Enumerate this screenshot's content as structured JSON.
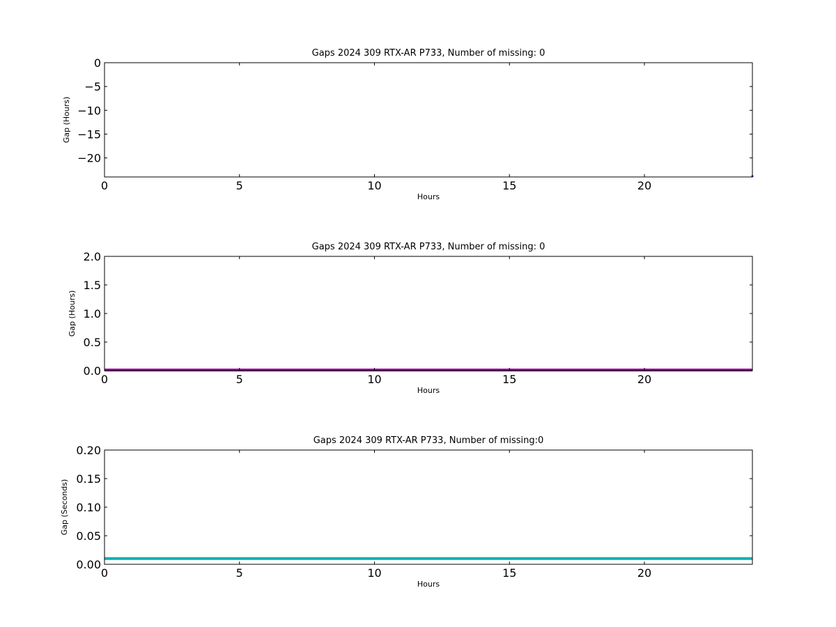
{
  "chart_data": [
    {
      "type": "line",
      "title": "Gaps 2024 309 RTX-AR  P733, Number of missing: 0",
      "xlabel": "Hours",
      "ylabel": "Gap (Hours)",
      "xlim": [
        0,
        24
      ],
      "ylim": [
        -24,
        0
      ],
      "xticks": [
        0,
        5,
        10,
        15,
        20
      ],
      "xtick_labels": [
        "0",
        "5",
        "10",
        "15",
        "20"
      ],
      "yticks": [
        0,
        -5,
        -10,
        -15,
        -20
      ],
      "ytick_labels": [
        "0",
        "−5",
        "−10",
        "−15",
        "−20"
      ],
      "grid": false,
      "series": [
        {
          "color": "#0000ff",
          "x": [
            24.0
          ],
          "y": [
            -24.0
          ]
        }
      ]
    },
    {
      "type": "line",
      "title": "Gaps 2024 309 RTX-AR  P733, Number of missing: 0",
      "xlabel": "Hours",
      "ylabel": "Gap (Hours)",
      "xlim": [
        0,
        24
      ],
      "ylim": [
        0,
        2
      ],
      "xticks": [
        0,
        5,
        10,
        15,
        20
      ],
      "xtick_labels": [
        "0",
        "5",
        "10",
        "15",
        "20"
      ],
      "yticks": [
        0,
        0.5,
        1,
        1.5,
        2
      ],
      "ytick_labels": [
        "0.0",
        "0.5",
        "1.0",
        "1.5",
        "2.0"
      ],
      "grid": false,
      "series": [
        {
          "color": "#990099",
          "x": [
            0,
            24
          ],
          "y": [
            0.01,
            0.01
          ]
        }
      ]
    },
    {
      "type": "line",
      "title": "Gaps 2024 309 RTX-AR  P733, Number of missing:0",
      "xlabel": "Hours",
      "ylabel": "Gap (Seconds)",
      "xlim": [
        0,
        24
      ],
      "ylim": [
        0,
        0.2
      ],
      "xticks": [
        0,
        5,
        10,
        15,
        20
      ],
      "xtick_labels": [
        "0",
        "5",
        "10",
        "15",
        "20"
      ],
      "yticks": [
        0,
        0.05,
        0.1,
        0.15,
        0.2
      ],
      "ytick_labels": [
        "0.00",
        "0.05",
        "0.10",
        "0.15",
        "0.20"
      ],
      "grid": false,
      "series": [
        {
          "color": "#00b3b3",
          "x": [
            0,
            24
          ],
          "y": [
            0.01,
            0.01
          ]
        }
      ]
    }
  ]
}
